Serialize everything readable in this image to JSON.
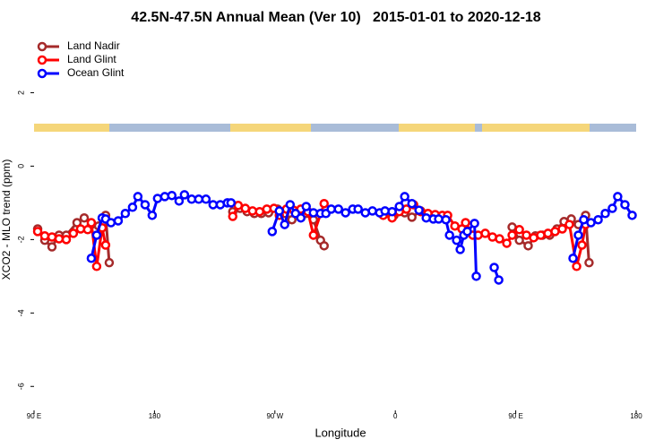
{
  "chart_data": {
    "type": "line",
    "title": "42.5N-47.5N Annual Mean (Ver 10)   2015-01-01 to 2020-12-18",
    "xlabel": "Longitude",
    "ylabel": "XCO2 - MLO trend (ppm)",
    "xlim": [
      90,
      540
    ],
    "ylim": [
      -6.75,
      3.5
    ],
    "xticks": [
      {
        "value": 90,
        "label": "90 E"
      },
      {
        "value": 180,
        "label": "180"
      },
      {
        "value": 270,
        "label": "90 W"
      },
      {
        "value": 360,
        "label": "0"
      },
      {
        "value": 450,
        "label": "90 E"
      },
      {
        "value": 540,
        "label": "180"
      }
    ],
    "yticks": [
      2,
      0,
      -2,
      -4,
      -6
    ],
    "legend": "top-left",
    "series": [
      {
        "name": "Land Nadir",
        "color": "#a52a2a",
        "x": [
          92.7,
          98,
          103.4,
          108.7,
          114.1,
          122.1,
          127.5,
          132.8,
          138.2,
          143.5,
          146.2,
          null,
          238.5,
          243.9,
          249.2,
          254.6,
          259.9,
          265.3,
          272,
          277.3,
          282.7,
          288,
          293.4,
          298.8,
          304.1,
          306.8,
          null,
          352.3,
          359,
          367,
          372.4,
          379,
          384.4,
          null,
          447.3,
          452.7,
          459.3,
          464.7,
          470,
          475.4,
          480.8,
          486.1,
          491.5,
          496.8,
          502.2,
          504.8
        ],
        "values": [
          -1.71,
          -2.02,
          -2.2,
          -1.88,
          -1.88,
          -1.54,
          -1.41,
          -1.59,
          -1.63,
          -1.34,
          -2.63,
          null,
          -1.24,
          -1.15,
          -1.24,
          -1.29,
          -1.29,
          -1.27,
          -1.17,
          -1.29,
          -1.46,
          -1.27,
          -1.29,
          -1.46,
          -2.02,
          -2.17,
          null,
          -1.29,
          -1.34,
          -1.27,
          -1.39,
          -1.22,
          -1.34,
          null,
          -1.66,
          -2.02,
          -2.17,
          -1.9,
          -1.88,
          -1.88,
          -1.71,
          -1.51,
          -1.44,
          -1.59,
          -1.34,
          -2.63
        ]
      },
      {
        "name": "Land Glint",
        "color": "#ff0000",
        "x": [
          92.7,
          98,
          103.4,
          108.7,
          114.1,
          119.4,
          124.8,
          130.1,
          132.8,
          136.8,
          140.9,
          143.5,
          null,
          238.5,
          242.6,
          247.9,
          253.3,
          258.6,
          264,
          269.3,
          273.3,
          278.7,
          284,
          289.4,
          294.7,
          298.8,
          306.8,
          null,
          351,
          357.6,
          363,
          368.3,
          373.7,
          379,
          384.4,
          389.8,
          395.1,
          399.1,
          404.5,
          409.8,
          412.5,
          417.9,
          421.9,
          427.2,
          432.6,
          437.9,
          443.3,
          447.3,
          452.7,
          458,
          463.4,
          468.7,
          474.1,
          479.4,
          484.8,
          490.1,
          495.5,
          499.5,
          502.2
        ],
        "values": [
          -1.78,
          -1.9,
          -1.93,
          -1.98,
          -2,
          -1.83,
          -1.71,
          -1.73,
          -1.54,
          -2.73,
          -1.68,
          -2.15,
          null,
          -1.37,
          -1.07,
          -1.15,
          -1.22,
          -1.24,
          -1.17,
          -1.15,
          -1.34,
          -1.17,
          -1.2,
          -1.17,
          -1.24,
          -1.88,
          -1.02,
          null,
          -1.34,
          -1.41,
          -1.24,
          -1.17,
          -1.05,
          -1.24,
          -1.29,
          -1.32,
          -1.34,
          -1.34,
          -1.63,
          -1.71,
          -1.54,
          -1.88,
          -1.88,
          -1.83,
          -1.93,
          -1.98,
          -2.1,
          -1.88,
          -1.73,
          -1.88,
          -1.95,
          -1.88,
          -1.83,
          -1.78,
          -1.71,
          -1.59,
          -2.73,
          -2.15,
          -1.59
        ]
      },
      {
        "name": "Ocean Glint",
        "color": "#0000ff",
        "x": [
          132.8,
          136.8,
          140.9,
          143.5,
          147.5,
          152.9,
          158.2,
          163.6,
          167.6,
          173,
          178.3,
          182.3,
          187.7,
          193,
          198.4,
          202.4,
          207.8,
          213.1,
          218.5,
          223.8,
          229.2,
          234.5,
          237.2,
          null,
          268,
          273.3,
          277.3,
          281.4,
          285.4,
          289.4,
          293.4,
          298.8,
          304.1,
          308.1,
          312.1,
          317.5,
          322.8,
          328.2,
          332.2,
          337.6,
          342.9,
          348.3,
          352.3,
          357.6,
          363,
          367,
          372.4,
          377.7,
          383.1,
          388.4,
          392.4,
          397.8,
          400.5,
          405.8,
          408.5,
          411.2,
          413.8,
          419.2,
          420.5,
          null,
          433.9,
          437.3,
          null,
          492.8,
          496.8,
          500.8,
          506.2,
          511.6,
          516.9,
          522.2,
          526.2,
          531.6,
          537
        ],
        "values": [
          -2.51,
          -1.88,
          -1.41,
          -1.44,
          -1.54,
          -1.49,
          -1.29,
          -1.12,
          -0.83,
          -1.05,
          -1.34,
          -0.88,
          -0.83,
          -0.8,
          -0.95,
          -0.78,
          -0.9,
          -0.9,
          -0.9,
          -1.05,
          -1.05,
          -1,
          -1,
          null,
          -1.78,
          -1.22,
          -1.59,
          -1.05,
          -1.29,
          -1.41,
          -1.1,
          -1.27,
          -1.29,
          -1.29,
          -1.17,
          -1.17,
          -1.27,
          -1.17,
          -1.17,
          -1.27,
          -1.22,
          -1.27,
          -1.22,
          -1.24,
          -1.1,
          -0.83,
          -1.02,
          -1.2,
          -1.41,
          -1.44,
          -1.44,
          -1.46,
          -1.88,
          -2.02,
          -2.27,
          -1.88,
          -1.78,
          -1.56,
          -3,
          null,
          -2.76,
          -3.1,
          null,
          -2.51,
          -1.88,
          -1.46,
          -1.54,
          -1.46,
          -1.29,
          -1.15,
          -0.83,
          -1.05,
          -1.34
        ]
      }
    ]
  }
}
